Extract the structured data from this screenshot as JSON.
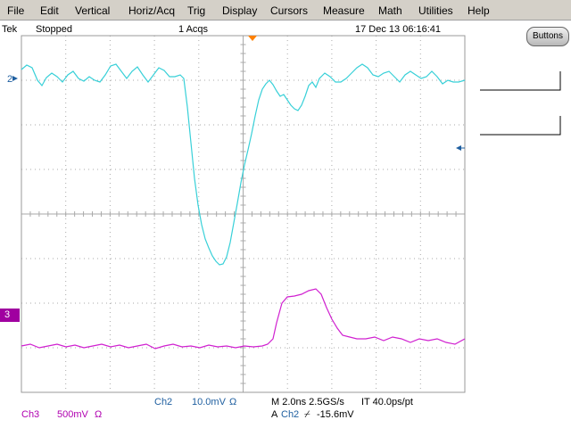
{
  "menu": [
    "File",
    "Edit",
    "Vertical",
    "Horiz/Acq",
    "Trig",
    "Display",
    "Cursors",
    "Measure",
    "Math",
    "Utilities",
    "Help"
  ],
  "status": {
    "brand": "Tek",
    "state": "Stopped",
    "acquisitions": "1 Acqs",
    "datetime": "17 Dec 13 06:16:41"
  },
  "buttons_label": "Buttons",
  "markers": {
    "ch2": "2",
    "ch3": "3"
  },
  "readout": {
    "ch2_name": "Ch2",
    "ch2_scale": "10.0mV",
    "ch2_coupling": "Ω",
    "horizontal": "M 2.0ns 2.5GS/s",
    "resolution": "IT 40.0ps/pt",
    "trigger_mode": "A",
    "trigger_source": "Ch2",
    "trigger_slope": "⌿",
    "trigger_level": "-15.6mV",
    "ch3_name": "Ch3",
    "ch3_scale": "500mV",
    "ch3_coupling": "Ω"
  }
}
